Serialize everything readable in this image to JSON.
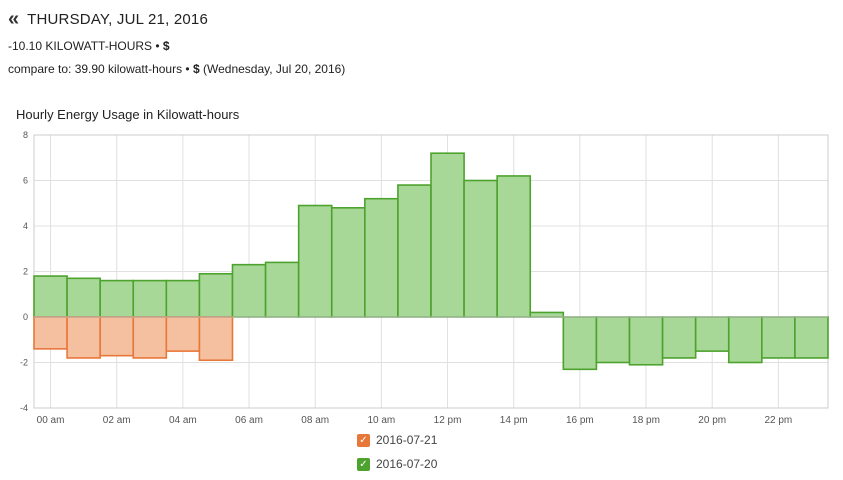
{
  "header": {
    "back_icon": "«",
    "date_title": "THURSDAY, JUL 21, 2016",
    "summary_value": "-10.10 KILOWATT-HOURS",
    "summary_sep": " • ",
    "summary_currency": "$",
    "compare_prefix": "compare to:  39.90 kilowatt-hours",
    "compare_sep": " • ",
    "compare_currency": "$",
    "compare_suffix": " (Wednesday, Jul 20, 2016)"
  },
  "colors": {
    "current_fill": "#f5c09f",
    "current_stroke": "#e8773a",
    "compare_fill": "#a7d898",
    "compare_stroke": "#4ea22e",
    "grid": "#e0e0e0"
  },
  "legend": [
    {
      "label": "2016-07-21",
      "color": "#e8773a",
      "checked": true,
      "check_glyph": "✓"
    },
    {
      "label": "2016-07-20",
      "color": "#4ea22e",
      "checked": true,
      "check_glyph": "✓"
    }
  ],
  "chart_data": {
    "type": "bar",
    "title": "Hourly Energy Usage in Kilowatt-hours",
    "xlabel": "",
    "ylabel": "",
    "ylim": [
      -4,
      8
    ],
    "yticks": [
      -4,
      -2,
      0,
      2,
      4,
      6,
      8
    ],
    "hours": [
      0,
      1,
      2,
      3,
      4,
      5,
      6,
      7,
      8,
      9,
      10,
      11,
      12,
      13,
      14,
      15,
      16,
      17,
      18,
      19,
      20,
      21,
      22,
      23
    ],
    "xtick_labels": [
      "00 am",
      "02 am",
      "04 am",
      "06 am",
      "08 am",
      "10 am",
      "12 pm",
      "14 pm",
      "16 pm",
      "18 pm",
      "20 pm",
      "22 pm"
    ],
    "xtick_hours": [
      0,
      2,
      4,
      6,
      8,
      10,
      12,
      14,
      16,
      18,
      20,
      22
    ],
    "series": [
      {
        "name": "2016-07-20",
        "values": [
          1.8,
          1.7,
          1.6,
          1.6,
          1.6,
          1.9,
          2.3,
          2.4,
          4.9,
          4.8,
          5.2,
          5.8,
          7.2,
          6.0,
          6.2,
          0.2,
          -2.3,
          -2.0,
          -2.1,
          -1.8,
          -1.5,
          -2.0,
          -1.8,
          -1.8
        ]
      },
      {
        "name": "2016-07-21",
        "values": [
          -1.4,
          -1.8,
          -1.7,
          -1.8,
          -1.5,
          -1.9
        ]
      }
    ],
    "grid": true,
    "legend_position": "bottom-center"
  }
}
